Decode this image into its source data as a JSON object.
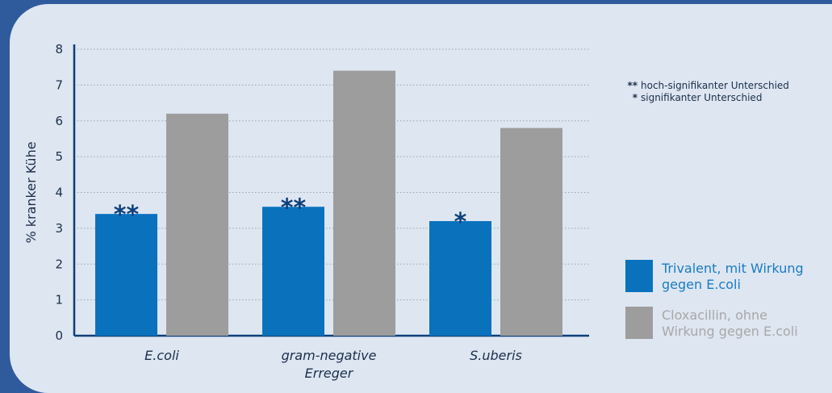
{
  "chart_data": {
    "type": "bar",
    "categories": [
      "E.coli",
      "gram-negative Erreger",
      "S.uberis"
    ],
    "category_lines": [
      [
        "E.coli"
      ],
      [
        "gram-negative",
        "Erreger"
      ],
      [
        "S.uberis"
      ]
    ],
    "series": [
      {
        "name": "Trivalent, mit Wirkung gegen E.coli",
        "legend_lines": [
          "Trivalent, mit Wirkung",
          "gegen E.coli"
        ],
        "color": "#0a72bd",
        "values": [
          3.4,
          3.6,
          3.2
        ]
      },
      {
        "name": "Cloxacillin, ohne Wirkung gegen E.coli",
        "legend_lines": [
          "Cloxacillin, ohne",
          "Wirkung gegen E.coli"
        ],
        "color": "#9d9d9d",
        "values": [
          6.2,
          7.4,
          5.8
        ]
      }
    ],
    "significance": [
      "**",
      "**",
      "*"
    ],
    "ylabel": "% kranker Kühe",
    "ylim": [
      0,
      8
    ],
    "yticks": [
      0,
      1,
      2,
      3,
      4,
      5,
      6,
      7,
      8
    ],
    "grid": true,
    "legend_position": "bottom-right",
    "notes": [
      {
        "marker": "**",
        "text": "hoch-signifikanter Unterschied"
      },
      {
        "marker": "*",
        "text": "signifikanter Unterschied"
      }
    ],
    "legend_text_colors": [
      "#1a7cc2",
      "#a8a8a8"
    ]
  }
}
